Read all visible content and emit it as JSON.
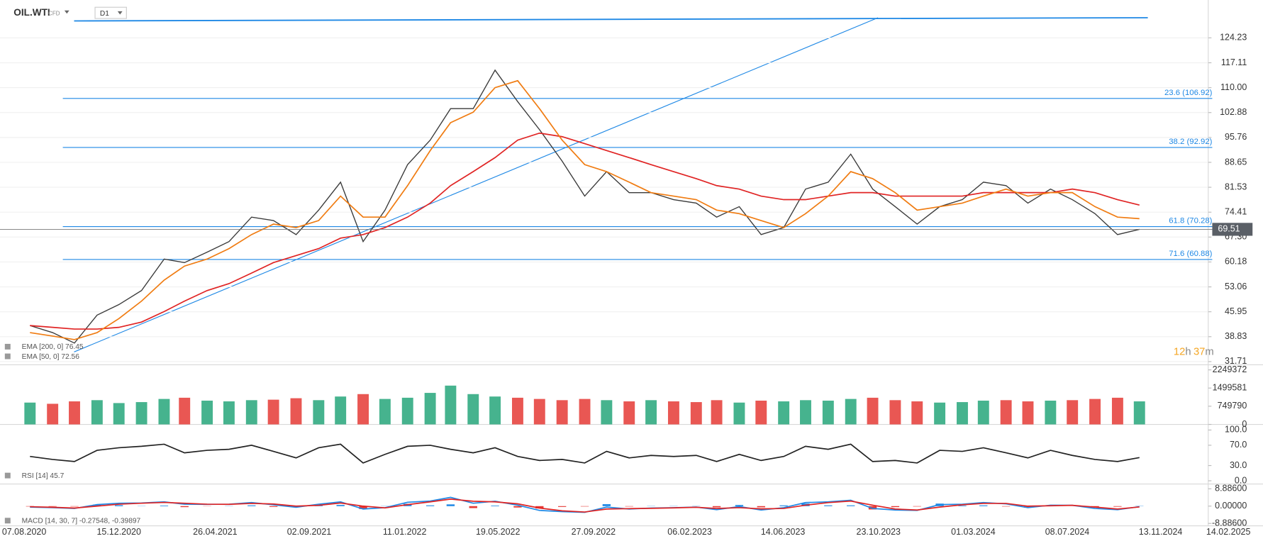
{
  "header": {
    "symbol": "OIL.WTI",
    "kind": "CFD",
    "interval": "D1"
  },
  "countdown": [
    "12",
    "h",
    "37",
    "m"
  ],
  "chart_data": [
    {
      "type": "line",
      "x": [
        "15.08.2020",
        "15.09.2020",
        "15.10.2020",
        "15.11.2020",
        "15.12.2020",
        "15.01.2021",
        "15.02.2021",
        "15.03.2021",
        "15.04.2021",
        "15.05.2021",
        "15.06.2021",
        "15.07.2021",
        "15.08.2021",
        "15.09.2021",
        "15.10.2021",
        "15.11.2021",
        "15.12.2021",
        "15.01.2022",
        "15.02.2022",
        "15.03.2022",
        "15.04.2022",
        "15.05.2022",
        "15.06.2022",
        "15.07.2022",
        "15.08.2022",
        "15.09.2022",
        "15.10.2022",
        "15.11.2022",
        "15.12.2022",
        "15.01.2023",
        "15.02.2023",
        "15.03.2023",
        "15.04.2023",
        "15.05.2023",
        "15.06.2023",
        "15.07.2023",
        "15.08.2023",
        "15.09.2023",
        "15.10.2023",
        "15.11.2023",
        "15.12.2023",
        "15.01.2024",
        "15.02.2024",
        "15.03.2024",
        "15.04.2024",
        "15.05.2024",
        "15.06.2024",
        "15.07.2024",
        "15.08.2024",
        "15.09.2024",
        "15.10.2024"
      ],
      "xlim": [
        "07.08.2020",
        "14.02.2025"
      ],
      "xticks": [
        "07.08.2020",
        "15.12.2020",
        "26.04.2021",
        "02.09.2021",
        "11.01.2022",
        "19.05.2022",
        "27.09.2022",
        "06.02.2023",
        "14.06.2023",
        "23.10.2023",
        "01.03.2024",
        "08.07.2024",
        "13.11.2024",
        "14.02.2025"
      ],
      "ylim": [
        30.79,
        135.05
      ],
      "yticks": [
        31.71,
        38.83,
        45.95,
        53.06,
        60.18,
        {
          "value": 67.3,
          "label": "67.30"
        },
        74.41,
        81.53,
        88.65,
        95.76,
        102.88,
        {
          "value": 110,
          "label": "110.00"
        },
        117.11,
        124.23
      ],
      "grid": true,
      "series": [
        {
          "color": "#3a3a3a",
          "values": [
            42,
            40,
            37,
            45,
            48,
            52,
            61,
            60,
            63,
            66,
            73,
            72,
            68,
            75,
            83,
            66,
            75,
            88,
            95,
            104,
            104,
            115,
            106,
            98,
            89,
            79,
            86,
            80,
            80,
            78,
            77,
            73,
            76,
            68,
            70,
            81,
            83,
            91,
            81,
            76,
            71,
            76,
            78,
            83,
            82,
            77,
            81,
            78,
            74,
            68,
            69.51
          ]
        },
        {
          "name": "EMA [200, 0] 76.45",
          "color": "#e02424",
          "values": [
            42,
            41.5,
            41,
            41,
            41.5,
            43,
            46,
            49,
            52,
            54,
            57,
            60,
            62,
            64,
            67,
            68,
            70,
            73,
            77,
            82,
            86,
            90,
            95,
            97,
            96,
            94,
            92,
            90,
            88,
            86,
            84,
            82,
            81,
            79,
            78,
            78,
            79,
            80,
            80,
            79,
            79,
            79,
            79,
            80,
            80,
            80,
            80,
            81,
            80,
            78,
            76.45
          ]
        },
        {
          "name": "EMA [50, 0] 72.56",
          "color": "#f07c12",
          "values": [
            40,
            39,
            38,
            40,
            44,
            49,
            55,
            59,
            61,
            64,
            68,
            71,
            70,
            72,
            79,
            73,
            73,
            82,
            92,
            100,
            103,
            110,
            112,
            104,
            95,
            88,
            86,
            83,
            80,
            79,
            78,
            75,
            74,
            72,
            70,
            74,
            79,
            86,
            84,
            80,
            75,
            76,
            77,
            79,
            81,
            79,
            80,
            80,
            76,
            73,
            72.56
          ]
        }
      ],
      "levels": [
        {
          "label": "23.6 (106.92)",
          "value": 106.92
        },
        {
          "label": "38.2 (92.92)",
          "value": 92.92
        },
        {
          "label": "61.8 (70.28)",
          "value": 70.28
        },
        {
          "label": "71.6 (60.88)",
          "value": 60.88
        }
      ],
      "level_color": "#1e88e5"
    },
    {
      "type": "bar",
      "values": [
        900000,
        850000,
        950000,
        1000000,
        880000,
        920000,
        1050000,
        1100000,
        980000,
        950000,
        1000000,
        1020000,
        1080000,
        1000000,
        1150000,
        1250000,
        1050000,
        1100000,
        1300000,
        1600000,
        1250000,
        1150000,
        1100000,
        1050000,
        1000000,
        1050000,
        1000000,
        950000,
        1000000,
        950000,
        920000,
        1000000,
        900000,
        980000,
        950000,
        1000000,
        980000,
        1050000,
        1100000,
        1000000,
        950000,
        900000,
        920000,
        980000,
        1000000,
        950000,
        980000,
        1000000,
        1050000,
        1100000,
        950000
      ],
      "up_color": "#26a67a",
      "down_color": "#e53935",
      "ylim": [
        0,
        2392000
      ],
      "yticks": [
        0,
        749790,
        1499581,
        2249372
      ]
    },
    {
      "type": "line",
      "ylim": [
        -4.76,
        109.5
      ],
      "yticks": [
        {
          "value": 0,
          "label": "0.0"
        },
        {
          "value": 30,
          "label": "30.0"
        },
        {
          "value": 70,
          "label": "70.0"
        },
        {
          "value": 100,
          "label": "100.0"
        }
      ],
      "series": [
        {
          "name": "RSI [14] 45.7",
          "color": "#222222",
          "values": [
            48,
            42,
            38,
            60,
            65,
            68,
            72,
            55,
            60,
            62,
            70,
            58,
            45,
            65,
            72,
            35,
            52,
            68,
            70,
            62,
            55,
            65,
            48,
            40,
            42,
            35,
            58,
            45,
            50,
            48,
            50,
            38,
            52,
            40,
            48,
            68,
            62,
            72,
            38,
            40,
            35,
            60,
            58,
            65,
            55,
            45,
            60,
            50,
            42,
            38,
            45.7
          ]
        }
      ]
    },
    {
      "type": "macd",
      "ylim": [
        -10.13,
        10.54
      ],
      "yticks": [
        {
          "value": -8.886,
          "label": "-8.88600"
        },
        {
          "value": 0,
          "label": "0.00000"
        },
        {
          "value": 8.886,
          "label": "8.88600"
        }
      ],
      "series": [
        {
          "name": "MACD [14, 30, 7] -0.27548, -0.39897",
          "color": "#1e88e5",
          "values": [
            -0.5,
            -0.8,
            -1.2,
            0.8,
            1.5,
            1.6,
            2.2,
            1.0,
            0.9,
            1.0,
            1.8,
            0.7,
            -0.6,
            1.0,
            2.2,
            -1.5,
            -0.8,
            2.0,
            2.6,
            4.5,
            1.5,
            2.5,
            0.5,
            -2.2,
            -2.8,
            -3.2,
            -0.5,
            -1.5,
            -1.0,
            -0.8,
            -0.5,
            -1.8,
            -0.2,
            -2.0,
            -0.8,
            1.8,
            2.2,
            3.0,
            -1.2,
            -2.0,
            -2.2,
            0.8,
            1.0,
            1.8,
            1.2,
            -0.8,
            0.5,
            0.4,
            -1.2,
            -1.8,
            -0.27548
          ]
        },
        {
          "color": "#e02424",
          "values": [
            -0.3,
            -0.6,
            -1.0,
            0.0,
            1.0,
            1.5,
            1.9,
            1.5,
            1.0,
            0.9,
            1.4,
            1.1,
            0.0,
            0.4,
            1.6,
            0.0,
            -0.9,
            0.8,
            2.2,
            3.6,
            2.5,
            2.2,
            1.2,
            -1.0,
            -2.4,
            -3.0,
            -1.5,
            -1.3,
            -1.1,
            -0.9,
            -0.6,
            -1.2,
            -0.8,
            -1.4,
            -1.2,
            0.5,
            1.8,
            2.6,
            0.5,
            -1.5,
            -2.0,
            -0.5,
            0.7,
            1.4,
            1.4,
            0.0,
            0.2,
            0.4,
            -0.5,
            -1.5,
            -0.39897
          ]
        }
      ],
      "histogram": [
        -0.2,
        -0.2,
        -0.2,
        0.8,
        0.5,
        0.1,
        0.3,
        -0.5,
        -0.1,
        0.1,
        0.4,
        -0.4,
        -0.6,
        0.6,
        0.6,
        -1.5,
        0.1,
        1.2,
        0.4,
        0.9,
        -1.0,
        0.3,
        -0.7,
        -1.2,
        -0.4,
        -0.2,
        1.0,
        -0.2,
        0.1,
        0.1,
        0.1,
        -0.6,
        0.6,
        -0.6,
        0.4,
        1.3,
        0.4,
        0.4,
        -1.7,
        -0.5,
        -0.2,
        1.3,
        0.3,
        0.4,
        -0.2,
        -0.8,
        0.3,
        0.0,
        -0.7,
        -0.3,
        0.12349
      ],
      "hist_up_color": "#1e88e5",
      "hist_down_color": "#e53935"
    }
  ]
}
